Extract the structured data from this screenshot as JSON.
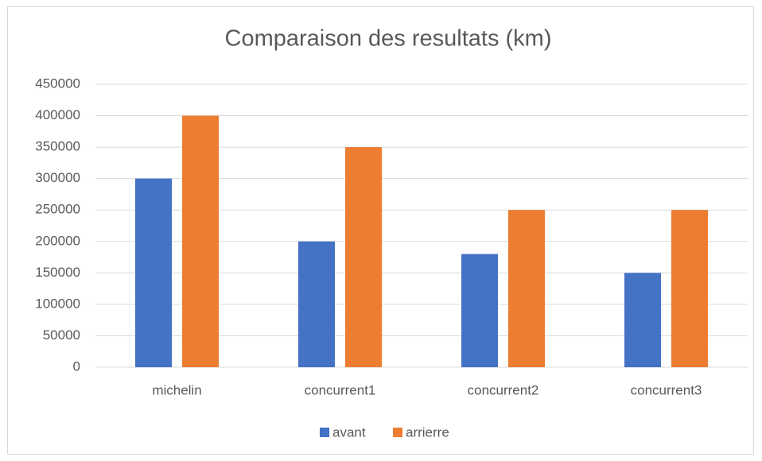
{
  "chart_data": {
    "type": "bar",
    "title": "Comparaison des resultats (km)",
    "categories": [
      "michelin",
      "concurrent1",
      "concurrent2",
      "concurrent3"
    ],
    "series": [
      {
        "name": "avant",
        "color": "#4472c4",
        "values": [
          300000,
          200000,
          180000,
          150000
        ]
      },
      {
        "name": "arrierre",
        "color": "#ed7d31",
        "values": [
          400000,
          350000,
          250000,
          250000
        ]
      }
    ],
    "ylim": [
      0,
      450000
    ],
    "yticks": [
      0,
      50000,
      100000,
      150000,
      200000,
      250000,
      300000,
      350000,
      400000,
      450000
    ],
    "grid": true,
    "legend": "bottom"
  }
}
